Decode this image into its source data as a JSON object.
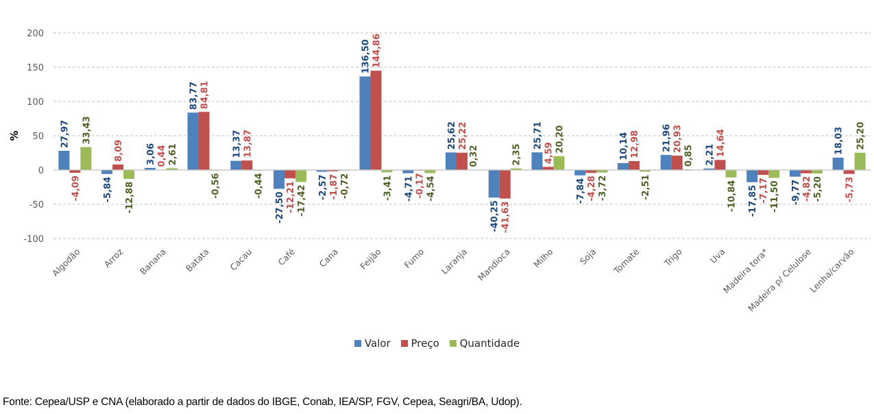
{
  "chart_data": {
    "type": "bar",
    "title": "",
    "xlabel": "",
    "ylabel": "%",
    "ylim": [
      -100,
      200
    ],
    "yticks": [
      200,
      150,
      100,
      50,
      0,
      -50,
      -100
    ],
    "ytick_labels": [
      "200",
      "150",
      "100",
      "50",
      "0",
      "-50",
      "-100"
    ],
    "grid": true,
    "legend_position": "bottom",
    "categories": [
      "Algodão",
      "Arroz",
      "Banana",
      "Batata",
      "Cacau",
      "Café",
      "Cana",
      "Feijão",
      "Fumo",
      "Laranja",
      "Mandioca",
      "Milho",
      "Soja",
      "Tomate",
      "Trigo",
      "Uva",
      "Madeira tora*",
      "Madeira p/ Celulose",
      "Lenha/carvão"
    ],
    "series": [
      {
        "name": "Valor",
        "color": "#4F81BD",
        "label_color": "#1F497D",
        "values": [
          27.97,
          -5.84,
          3.06,
          83.77,
          13.37,
          -27.5,
          -2.57,
          136.5,
          -4.71,
          25.62,
          -40.25,
          25.71,
          -7.84,
          10.14,
          21.96,
          2.21,
          -17.85,
          -9.77,
          18.03
        ],
        "labels": [
          "27,97",
          "-5,84",
          "3,06",
          "83,77",
          "13,37",
          "-27,50",
          "-2,57",
          "136,50",
          "-4,71",
          "25,62",
          "-40,25",
          "25,71",
          "-7,84",
          "10,14",
          "21,96",
          "2,21",
          "-17,85",
          "-9,77",
          "18,03"
        ]
      },
      {
        "name": "Preço",
        "color": "#C0504D",
        "label_color": "#C0504D",
        "values": [
          -4.09,
          8.09,
          0.44,
          84.81,
          13.87,
          -12.21,
          -1.87,
          144.86,
          -0.17,
          25.22,
          -41.63,
          4.59,
          -4.28,
          12.98,
          20.93,
          14.64,
          -7.17,
          -4.82,
          -5.73
        ],
        "labels": [
          "-4,09",
          "8,09",
          "0,44",
          "84,81",
          "13,87",
          "-12,21",
          "-1,87",
          "144,86",
          "-0,17",
          "25,22",
          "-41,63",
          "4,59",
          "-4,28",
          "12,98",
          "20,93",
          "14,64",
          "-7,17",
          "-4,82",
          "-5,73"
        ]
      },
      {
        "name": "Quantidade",
        "color": "#9BBB59",
        "label_color": "#4F6228",
        "values": [
          33.43,
          -12.88,
          2.61,
          -0.56,
          -0.44,
          -17.42,
          -0.72,
          -3.41,
          -4.54,
          0.32,
          2.35,
          20.2,
          -3.72,
          -2.51,
          0.85,
          -10.84,
          -11.5,
          -5.2,
          25.2
        ],
        "labels": [
          "33,43",
          "-12,88",
          "2,61",
          "-0,56",
          "-0,44",
          "-17,42",
          "-0,72",
          "-3,41",
          "-4,54",
          "0,32",
          "2,35",
          "20,20",
          "-3,72",
          "-2,51",
          "0,85",
          "-10,84",
          "-11,50",
          "-5,20",
          "25,20"
        ]
      }
    ]
  },
  "legend": {
    "items": [
      {
        "label": "Valor",
        "color": "#4F81BD"
      },
      {
        "label": "Preço",
        "color": "#C0504D"
      },
      {
        "label": "Quantidade",
        "color": "#9BBB59"
      }
    ]
  },
  "footer": {
    "source": "Fonte: Cepea/USP e CNA (elaborado a partir de dados do IBGE, Conab, IEA/SP, FGV, Cepea, Seagri/BA, Udop)."
  }
}
